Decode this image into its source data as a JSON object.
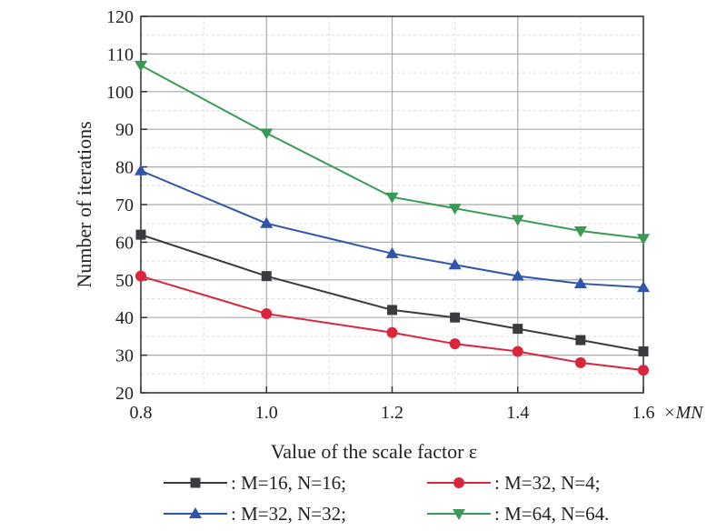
{
  "chart_data": {
    "type": "line",
    "xlabel": "Value of the scale factor ε",
    "x_unit": "×MN",
    "ylabel": "Number of iterations",
    "xlim": [
      0.8,
      1.6
    ],
    "ylim": [
      20,
      120
    ],
    "xticks": [
      "0.8",
      "1.0",
      "1.2",
      "1.4",
      "1.6"
    ],
    "yticks": [
      "20",
      "30",
      "40",
      "50",
      "60",
      "70",
      "80",
      "90",
      "100",
      "110",
      "120"
    ],
    "grid": true,
    "legend_position": "bottom",
    "x": [
      0.8,
      1.0,
      1.2,
      1.3,
      1.4,
      1.5,
      1.6
    ],
    "series": [
      {
        "name": ": M=16, N=16;",
        "color": "#3a3b3f",
        "marker": "square",
        "values": [
          62,
          51,
          42,
          40,
          37,
          34,
          31
        ]
      },
      {
        "name": ": M=32, N=4;",
        "color": "#d9263a",
        "marker": "circle",
        "values": [
          51,
          41,
          36,
          33,
          31,
          28,
          26
        ]
      },
      {
        "name": ": M=32, N=32;",
        "color": "#2f56a8",
        "marker": "triangle-up",
        "values": [
          79,
          65,
          57,
          54,
          51,
          49,
          48
        ]
      },
      {
        "name": ": M=64, N=64.",
        "color": "#3a9a55",
        "marker": "triangle-down",
        "values": [
          107,
          89,
          72,
          69,
          66,
          63,
          61
        ]
      }
    ]
  }
}
